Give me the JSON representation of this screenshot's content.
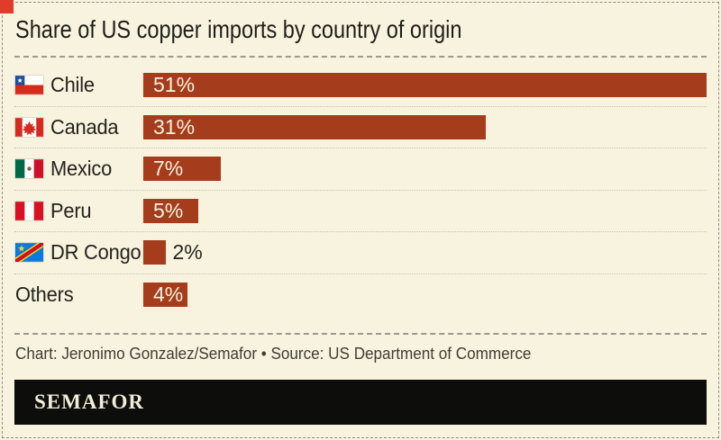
{
  "brand": {
    "wordmark": "SEMAFOR",
    "logo_square_color": "#E13C2B",
    "footer_bar_color": "#0D0D0B"
  },
  "title": "Share of US copper imports by country of origin",
  "chart_data": {
    "type": "bar",
    "orientation": "horizontal",
    "title": "Share of US copper imports by country of origin",
    "categories": [
      "Chile",
      "Canada",
      "Mexico",
      "Peru",
      "DR Congo",
      "Others"
    ],
    "values": [
      51,
      31,
      7,
      5,
      2,
      4
    ],
    "value_labels": [
      "51%",
      "31%",
      "7%",
      "5%",
      "2%",
      "4%"
    ],
    "value_placement": [
      "inside",
      "inside",
      "inside",
      "inside",
      "outside",
      "inside"
    ],
    "flags": [
      "chile",
      "canada",
      "mexico",
      "peru",
      "dr-congo",
      null
    ],
    "xlim": [
      0,
      51
    ],
    "grid": false,
    "legend": false,
    "bar_color": "#A53C1C",
    "value_color_inside": "#F6F1DC",
    "value_color_outside": "#25251F",
    "background_color": "#F8F3DE"
  },
  "footer": {
    "credit": "Chart: Jeronimo Gonzalez/Semafor • Source: US Department of Commerce"
  }
}
